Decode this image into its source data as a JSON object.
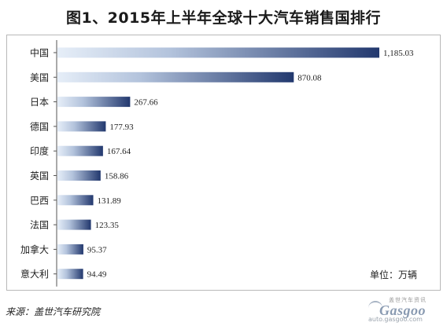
{
  "chart_data": {
    "type": "bar",
    "orientation": "horizontal",
    "title": "图1、2015年上半年全球十大汽车销售国排行",
    "categories": [
      "中国",
      "美国",
      "日本",
      "德国",
      "印度",
      "英国",
      "巴西",
      "法国",
      "加拿大",
      "意大利"
    ],
    "values": [
      1185.03,
      870.08,
      267.66,
      177.93,
      167.64,
      158.86,
      131.89,
      123.35,
      95.37,
      94.49
    ],
    "value_labels": [
      "1,185.03",
      "870.08",
      "267.66",
      "177.93",
      "167.64",
      "158.86",
      "131.89",
      "123.35",
      "95.37",
      "94.49"
    ],
    "xlim": [
      0,
      1185.03
    ],
    "unit_text": "单位：万辆",
    "grid": false,
    "legend": "none",
    "colors": {
      "bar_dark": "#22386e",
      "bar_light": "#e6eef8",
      "frame": "#b9b9b9",
      "text": "#222222"
    }
  },
  "source_text": "来源：盖世汽车研究院",
  "watermark": {
    "top_text": "盖世汽车资讯",
    "logo_text": "Gasgoo",
    "url_text": "auto.gasgoo.com"
  }
}
